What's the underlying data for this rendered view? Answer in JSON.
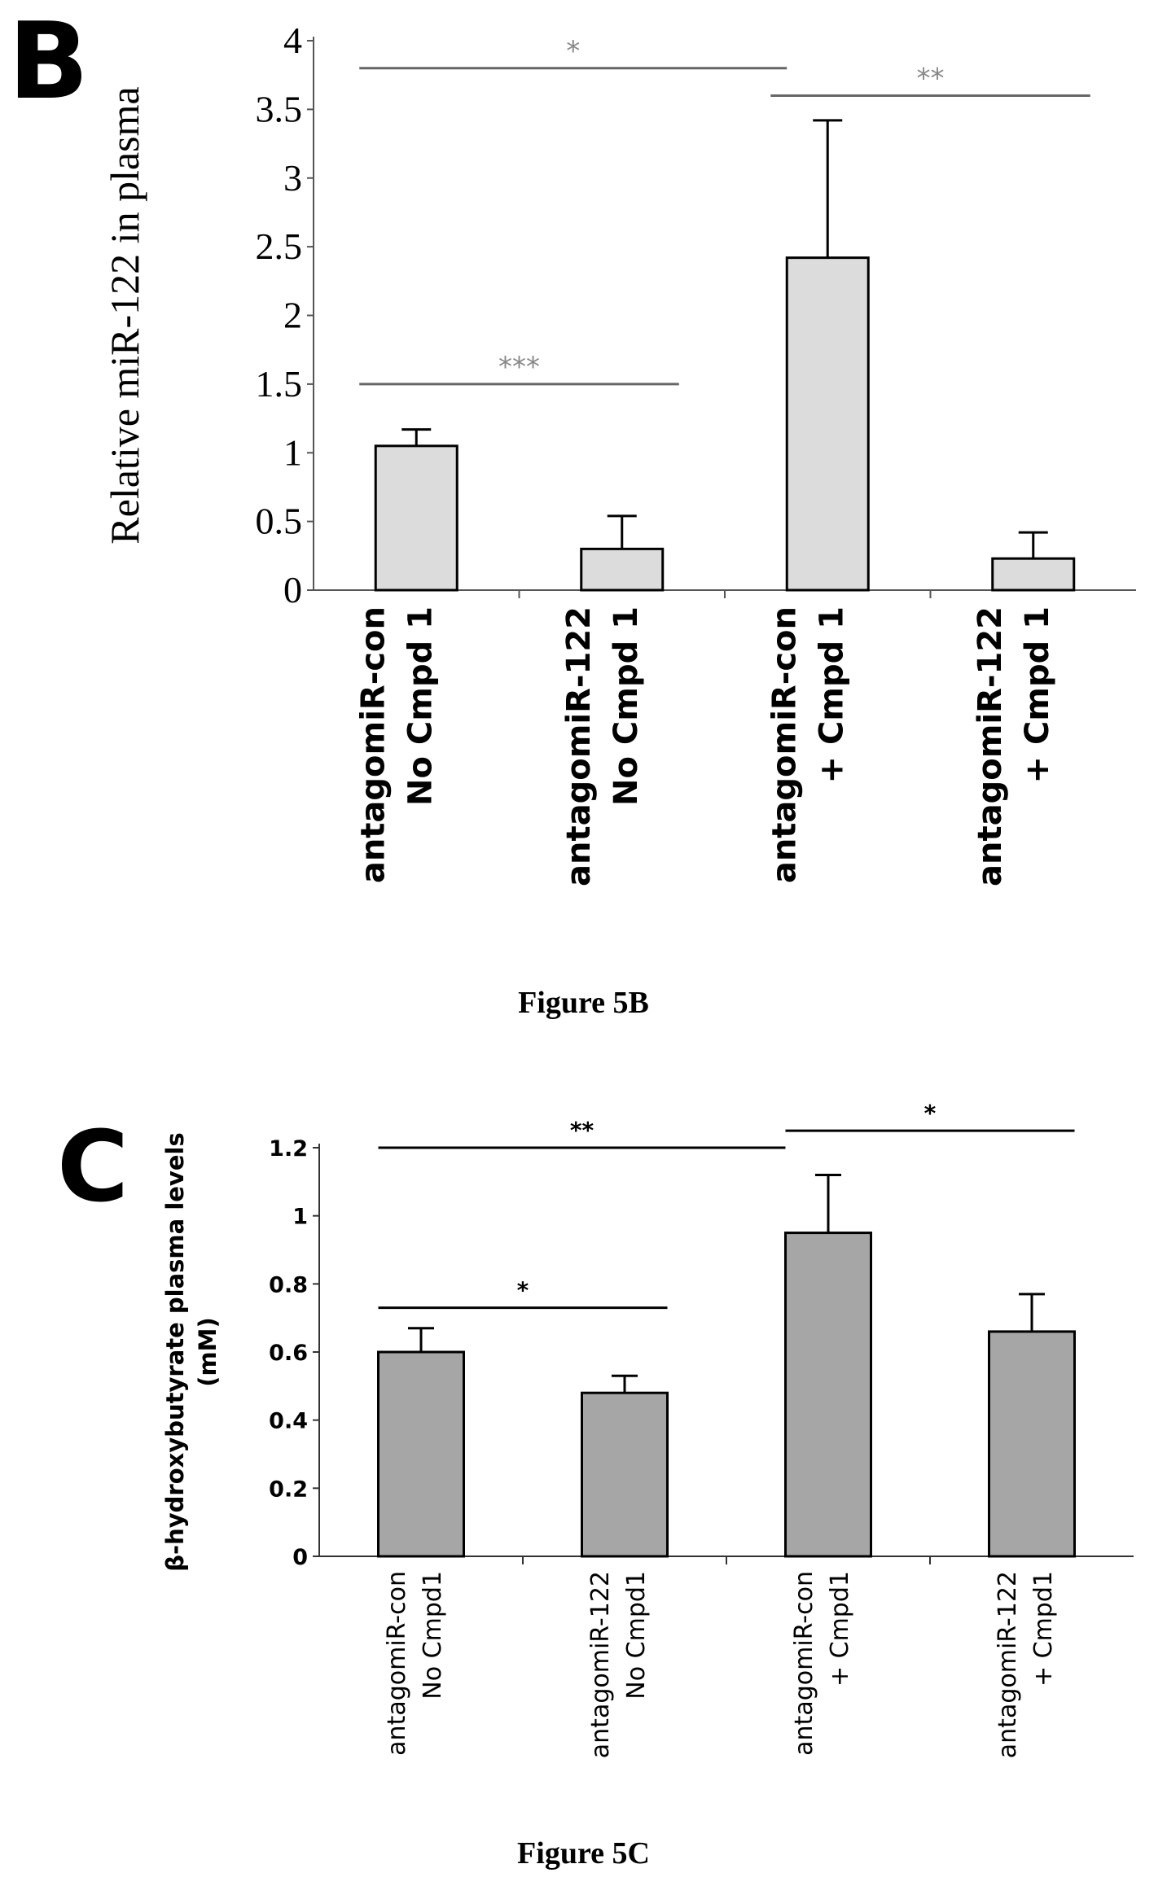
{
  "chart_data": [
    {
      "panel": "B",
      "type": "bar",
      "caption": "Figure 5B",
      "ylabel": "Relative miR-122 in plasma",
      "xlabel": "",
      "categories": [
        [
          "antagomiR-con",
          "No Cmpd 1"
        ],
        [
          "antagomiR-122",
          "No Cmpd 1"
        ],
        [
          "antagomiR-con",
          "+ Cmpd 1"
        ],
        [
          "antagomiR-122",
          "+ Cmpd 1"
        ]
      ],
      "values": [
        1.05,
        0.3,
        2.42,
        0.23
      ],
      "errors": [
        0.12,
        0.24,
        1.0,
        0.19
      ],
      "ylim": [
        0,
        4
      ],
      "yticks": [
        "0",
        "0.5",
        "1",
        "1.5",
        "2",
        "2.5",
        "3",
        "3.5",
        "4"
      ],
      "ytick_values": [
        0,
        0.5,
        1,
        1.5,
        2,
        2.5,
        3,
        3.5,
        4
      ],
      "bar_color": "#dcdcdc",
      "significance": [
        {
          "from": 0,
          "to": 1,
          "label": "***",
          "y": 1.5
        },
        {
          "from": 0,
          "to": 2,
          "label": "*",
          "y": 3.8
        },
        {
          "from": 2,
          "to": 3,
          "label": "**",
          "y": 3.6
        }
      ]
    },
    {
      "panel": "C",
      "type": "bar",
      "caption": "Figure 5C",
      "ylabel": [
        "β-hydroxybutyrate plasma levels",
        "(mM)"
      ],
      "xlabel": "",
      "categories": [
        [
          "antagomiR-con",
          "No Cmpd1"
        ],
        [
          "antagomiR-122",
          "No Cmpd1"
        ],
        [
          "antagomiR-con",
          "+ Cmpd1"
        ],
        [
          "antagomiR-122",
          "+ Cmpd1"
        ]
      ],
      "values": [
        0.6,
        0.48,
        0.95,
        0.66
      ],
      "errors": [
        0.07,
        0.05,
        0.17,
        0.11
      ],
      "ylim": [
        0,
        1.2
      ],
      "yticks": [
        "0",
        "0.2",
        "0.4",
        "0.6",
        "0.8",
        "1",
        "1.2"
      ],
      "ytick_values": [
        0,
        0.2,
        0.4,
        0.6,
        0.8,
        1.0,
        1.2
      ],
      "bar_color": "#a6a6a6",
      "significance": [
        {
          "from": 0,
          "to": 1,
          "label": "*",
          "y": 0.73
        },
        {
          "from": 0,
          "to": 2,
          "label": "**",
          "y": 1.2
        },
        {
          "from": 2,
          "to": 3,
          "label": "*",
          "y": 1.25
        }
      ]
    }
  ],
  "panels": {
    "b_letter": "B",
    "c_letter": "C",
    "b_caption": "Figure 5B",
    "c_caption": "Figure 5C"
  }
}
